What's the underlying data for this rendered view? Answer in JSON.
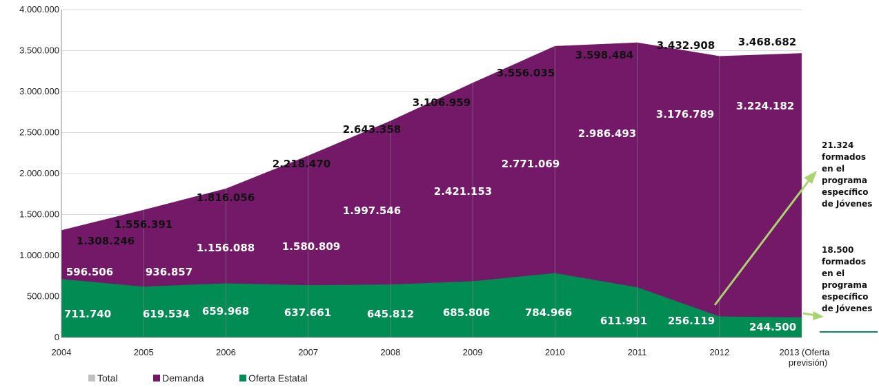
{
  "chart_data": {
    "type": "area",
    "stacked": true,
    "categories": [
      "2004",
      "2005",
      "2006",
      "2007",
      "2008",
      "2009",
      "2010",
      "2011",
      "2012",
      "2013 (Oferta previsión)"
    ],
    "series": [
      {
        "name": "Oferta Estatal",
        "values": [
          711740,
          619534,
          659968,
          637661,
          645812,
          685806,
          784966,
          611991,
          256119,
          244500
        ]
      },
      {
        "name": "Demanda",
        "values": [
          596506,
          936857,
          1156088,
          1580809,
          1997546,
          2421153,
          2771069,
          2986493,
          3176789,
          3224182
        ]
      },
      {
        "name": "Total",
        "values": [
          1308246,
          1556391,
          1816056,
          2218470,
          2643358,
          3106959,
          3556035,
          3598484,
          3432908,
          3468682
        ]
      }
    ],
    "value_labels": {
      "Oferta Estatal": [
        "711.740",
        "619.534",
        "659.968",
        "637.661",
        "645.812",
        "685.806",
        "784.966",
        "611.991",
        "256.119",
        "244.500"
      ],
      "Demanda": [
        "596.506",
        "936.857",
        "1.156.088",
        "1.580.809",
        "1.997.546",
        "2.421.153",
        "2.771.069",
        "2.986.493",
        "3.176.789",
        "3.224.182"
      ],
      "Total": [
        "1.308.246",
        "1.556.391",
        "1.816.056",
        "2.218.470",
        "2.643.358",
        "3.106.959",
        "3.556.035",
        "3.598.484",
        "3.432.908",
        "3.468.682"
      ]
    },
    "y_ticks": [
      {
        "value": 0,
        "label": "0"
      },
      {
        "value": 500000,
        "label": "500.000"
      },
      {
        "value": 1000000,
        "label": "1.000.000"
      },
      {
        "value": 1500000,
        "label": "1.500.000"
      },
      {
        "value": 2000000,
        "label": "2.000.000"
      },
      {
        "value": 2500000,
        "label": "2.500.000"
      },
      {
        "value": 3000000,
        "label": "3.000.000"
      },
      {
        "value": 3500000,
        "label": "3.500.000"
      },
      {
        "value": 4000000,
        "label": "4.000.000"
      }
    ],
    "ylim": [
      0,
      4000000
    ],
    "grid": true,
    "legend_position": "bottom-left",
    "legend": [
      "Total",
      "Demanda",
      "Oferta Estatal"
    ],
    "colors": {
      "Total": "#c0c0c0",
      "Demanda": "#741868",
      "Oferta Estatal": "#008c52",
      "arrow": "#a9d46f"
    },
    "annotations": [
      {
        "text": "21.324 formados en el programa específico de Jóvenes",
        "lines": [
          "21.324",
          "formados",
          "en el",
          "programa",
          "específico",
          "de Jóvenes"
        ]
      },
      {
        "text": "18.500 formados en el programa específico de Jóvenes",
        "lines": [
          "18.500",
          "formados",
          "en el",
          "programa",
          "específico",
          "de Jóvenes"
        ]
      }
    ]
  }
}
